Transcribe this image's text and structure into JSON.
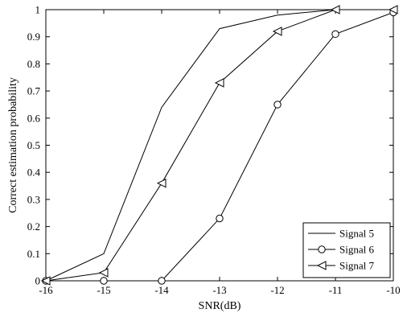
{
  "chart_data": {
    "type": "line",
    "xlabel": "SNR(dB)",
    "ylabel": "Correct estimation probability",
    "xlim": [
      -16,
      -10
    ],
    "ylim": [
      0,
      1
    ],
    "x_ticks": [
      "-16",
      "-15",
      "-14",
      "-13",
      "-12",
      "-11",
      "-10"
    ],
    "y_ticks": [
      "0",
      "0.1",
      "0.2",
      "0.3",
      "0.4",
      "0.5",
      "0.6",
      "0.7",
      "0.8",
      "0.9",
      "1"
    ],
    "grid": false,
    "legend_position": "bottom-right",
    "x": [
      -16,
      -15,
      -14,
      -13,
      -12,
      -11,
      -10
    ],
    "series": [
      {
        "name": "Signal 5",
        "marker": "none",
        "color": "#000000",
        "values": [
          0,
          0.1,
          0.64,
          0.93,
          0.98,
          1.0,
          1.0
        ]
      },
      {
        "name": "Signal 6",
        "marker": "circle",
        "color": "#000000",
        "values": [
          0,
          0,
          0,
          0.23,
          0.65,
          0.91,
          0.99
        ]
      },
      {
        "name": "Signal 7",
        "marker": "triangle-left",
        "color": "#000000",
        "values": [
          0,
          0.03,
          0.36,
          0.73,
          0.92,
          1.0,
          1.0
        ]
      }
    ]
  }
}
